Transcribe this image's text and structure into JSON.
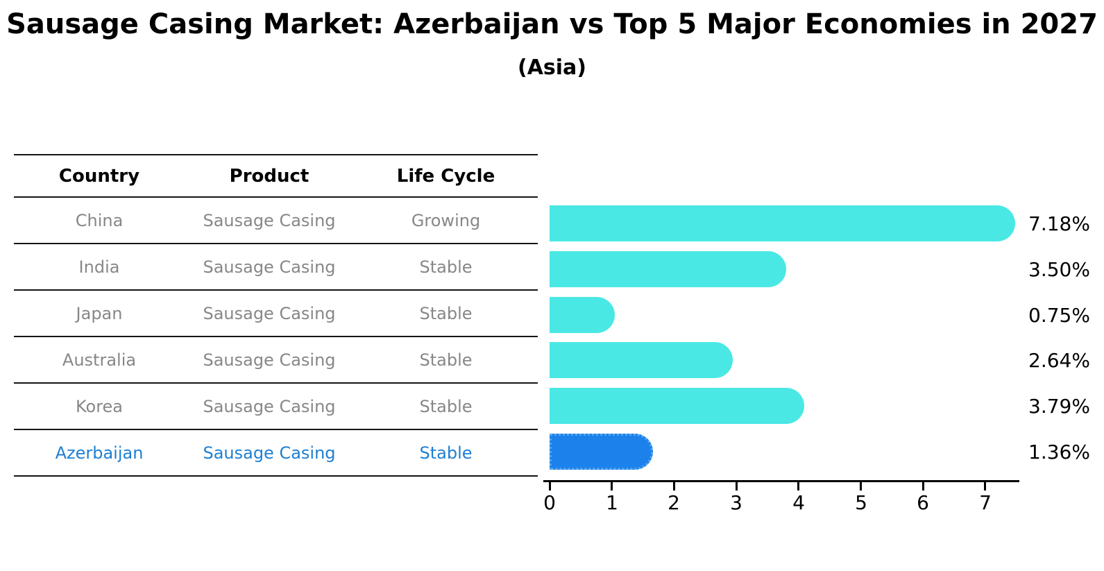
{
  "title": "Sausage Casing Market: Azerbaijan vs Top 5 Major Economies in 2027",
  "subtitle": "(Asia)",
  "table": {
    "headers": [
      "Country",
      "Product",
      "Life Cycle"
    ],
    "rows": [
      {
        "country": "China",
        "product": "Sausage Casing",
        "life_cycle": "Growing",
        "highlight": false
      },
      {
        "country": "India",
        "product": "Sausage Casing",
        "life_cycle": "Stable",
        "highlight": false
      },
      {
        "country": "Japan",
        "product": "Sausage Casing",
        "life_cycle": "Stable",
        "highlight": false
      },
      {
        "country": "Australia",
        "product": "Sausage Casing",
        "life_cycle": "Stable",
        "highlight": false
      },
      {
        "country": "Korea",
        "product": "Sausage Casing",
        "life_cycle": "Stable",
        "highlight": false
      },
      {
        "country": "Azerbaijan",
        "product": "Sausage Casing",
        "life_cycle": "Stable",
        "highlight": true
      }
    ]
  },
  "chart_data": {
    "type": "bar",
    "orientation": "horizontal",
    "title": "",
    "xlabel": "",
    "ylabel": "",
    "categories": [
      "China",
      "India",
      "Japan",
      "Australia",
      "Korea",
      "Azerbaijan"
    ],
    "values": [
      7.18,
      3.5,
      0.75,
      2.64,
      3.79,
      1.36
    ],
    "value_labels": [
      "7.18%",
      "3.50%",
      "0.75%",
      "2.64%",
      "3.79%",
      "1.36%"
    ],
    "x_ticks": [
      0,
      1,
      2,
      3,
      4,
      5,
      6,
      7
    ],
    "xlim": [
      0,
      7.55
    ],
    "grid": false,
    "legend": false,
    "highlight_index": 5
  },
  "colors": {
    "bar_default": "#4AE8E4",
    "bar_highlight": "#1C81EA",
    "bar_highlight_border": "#54A7F0",
    "highlight_text": "#1E7FD2",
    "table_text": "#878787",
    "heading_text": "#000000",
    "line": "#141414"
  }
}
